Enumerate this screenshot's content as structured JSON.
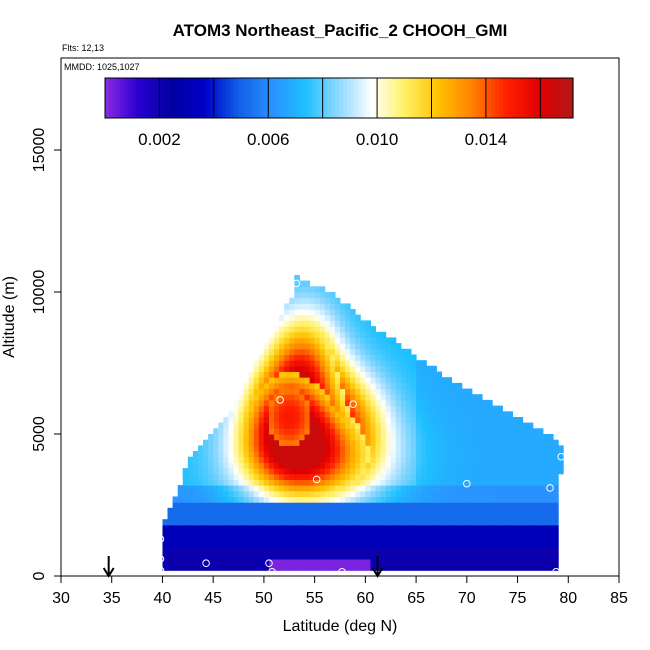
{
  "chart_data": {
    "type": "heatmap",
    "title": "ATOM3 Northeast_Pacific_2 CHOOH_GMI",
    "flights_label": "Flts: 12,13",
    "mmdd_label": "MMDD: 1025,1027",
    "xlabel": "Latitude (deg N)",
    "ylabel": "Altitude (m)",
    "xlim": [
      30,
      85
    ],
    "ylim": [
      0,
      17500
    ],
    "xticks": [
      "30",
      "35",
      "40",
      "45",
      "50",
      "55",
      "60",
      "65",
      "70",
      "75",
      "80",
      "85"
    ],
    "yticks": [
      "0",
      "5000",
      "10000",
      "15000"
    ],
    "grid": false,
    "colorbar": {
      "placement": "top inside plot",
      "range": [
        0,
        0.0172
      ],
      "ticks": [
        "0.002",
        "0.006",
        "0.010",
        "0.014"
      ],
      "colors": [
        "#8a2be2",
        "#2a00d0",
        "#0000a0",
        "#0000c8",
        "#1060e8",
        "#2a90ff",
        "#20c0ff",
        "#90d8ff",
        "#ffffff",
        "#fff060",
        "#ffc000",
        "#ff8000",
        "#ff2000",
        "#e00000",
        "#b01818"
      ]
    },
    "envelope": [
      {
        "y": 200,
        "x0": 39.8,
        "x1": 79
      },
      {
        "y": 1400,
        "x0": 39.8,
        "x1": 79
      },
      {
        "y": 2200,
        "x0": 40.5,
        "x1": 79
      },
      {
        "y": 3000,
        "x0": 41.5,
        "x1": 79
      },
      {
        "y": 4400,
        "x0": 43,
        "x1": 79.5
      },
      {
        "y": 5000,
        "x0": 45,
        "x1": 78
      },
      {
        "y": 6000,
        "x0": 47,
        "x1": 73
      },
      {
        "y": 7000,
        "x0": 48.5,
        "x1": 68
      },
      {
        "y": 8000,
        "x0": 50,
        "x1": 64
      },
      {
        "y": 9000,
        "x0": 51.5,
        "x1": 60
      },
      {
        "y": 10000,
        "x0": 53,
        "x1": 56.5
      },
      {
        "y": 10500,
        "x0": 53,
        "x1": 53.5
      }
    ],
    "hotspots": [
      {
        "lat": 52.5,
        "alt": 5600,
        "value": 0.015,
        "sx": 3.2,
        "sy": 1500
      },
      {
        "lat": 55.0,
        "alt": 4200,
        "value": 0.0135,
        "sx": 5.0,
        "sy": 1200
      },
      {
        "lat": 54.0,
        "alt": 7500,
        "value": 0.012,
        "sx": 2.5,
        "sy": 1500
      },
      {
        "lat": 58.0,
        "alt": 5800,
        "value": 0.011,
        "sx": 3.0,
        "sy": 1200
      }
    ],
    "surface_low": {
      "lat0": 50.5,
      "lat1": 60.5,
      "alt0": 0,
      "alt1": 500,
      "value": 0.0002
    },
    "points": [
      {
        "x": 39.8,
        "y": 1300
      },
      {
        "x": 39.8,
        "y": 600
      },
      {
        "x": 39.8,
        "y": 200
      },
      {
        "x": 44.3,
        "y": 450
      },
      {
        "x": 50.5,
        "y": 450
      },
      {
        "x": 50.8,
        "y": 150
      },
      {
        "x": 57.7,
        "y": 150
      },
      {
        "x": 53.2,
        "y": 10300
      },
      {
        "x": 51.6,
        "y": 6200
      },
      {
        "x": 58.8,
        "y": 6050
      },
      {
        "x": 55.2,
        "y": 3400
      },
      {
        "x": 70,
        "y": 3250
      },
      {
        "x": 78.2,
        "y": 3100
      },
      {
        "x": 79.3,
        "y": 4200
      },
      {
        "x": 78.8,
        "y": 150
      }
    ],
    "flight_markers": [
      34.7,
      61.2
    ]
  },
  "colors": {
    "axis": "#000000",
    "marker": "#ffffff"
  }
}
